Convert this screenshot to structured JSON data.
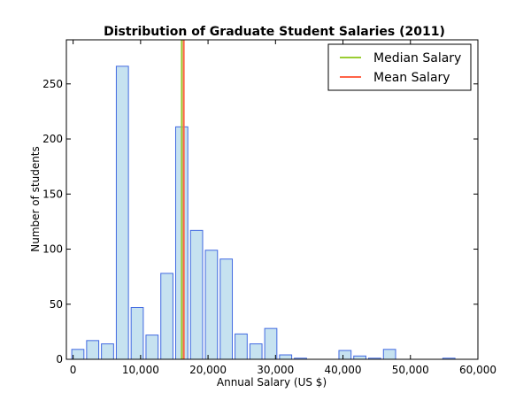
{
  "chart_data": {
    "type": "bar",
    "title": "Distribution of Graduate Student Salaries (2011)",
    "xlabel": "Annual Salary (US $)",
    "ylabel": "Number of students",
    "xlim": [
      -1000,
      60000
    ],
    "ylim": [
      0,
      290
    ],
    "xticks": [
      0,
      10000,
      20000,
      30000,
      40000,
      50000,
      60000
    ],
    "xtick_labels": [
      "0",
      "10,000",
      "20,000",
      "30,000",
      "40,000",
      "50,000",
      "60,000"
    ],
    "yticks": [
      0,
      50,
      100,
      150,
      200,
      250
    ],
    "yticks_labels": [
      "0",
      "50",
      "100",
      "150",
      "200",
      "250"
    ],
    "bin_width": 2200,
    "bar_width": 1800,
    "bins_start": [
      -200,
      2000,
      4200,
      6400,
      8600,
      10800,
      13000,
      15200,
      17400,
      19600,
      21800,
      24000,
      26200,
      28400,
      30600,
      32800,
      35000,
      37200,
      39400,
      41600,
      43800,
      46000,
      48200,
      50400,
      52600,
      54800,
      57000
    ],
    "values": [
      9,
      17,
      14,
      266,
      47,
      22,
      78,
      211,
      117,
      99,
      91,
      23,
      14,
      28,
      4,
      1,
      0,
      0,
      8,
      3,
      1,
      9,
      0,
      0,
      0,
      1,
      0
    ],
    "median": 16100,
    "mean": 16400,
    "legend": [
      {
        "label": "Median Salary",
        "color": "#9acd32"
      },
      {
        "label": "Mean Salary",
        "color": "#ff6347"
      }
    ],
    "legend_position": "top-right",
    "bar_fill": "#c6e2f0",
    "bar_stroke": "#4169e1",
    "grid": false
  }
}
